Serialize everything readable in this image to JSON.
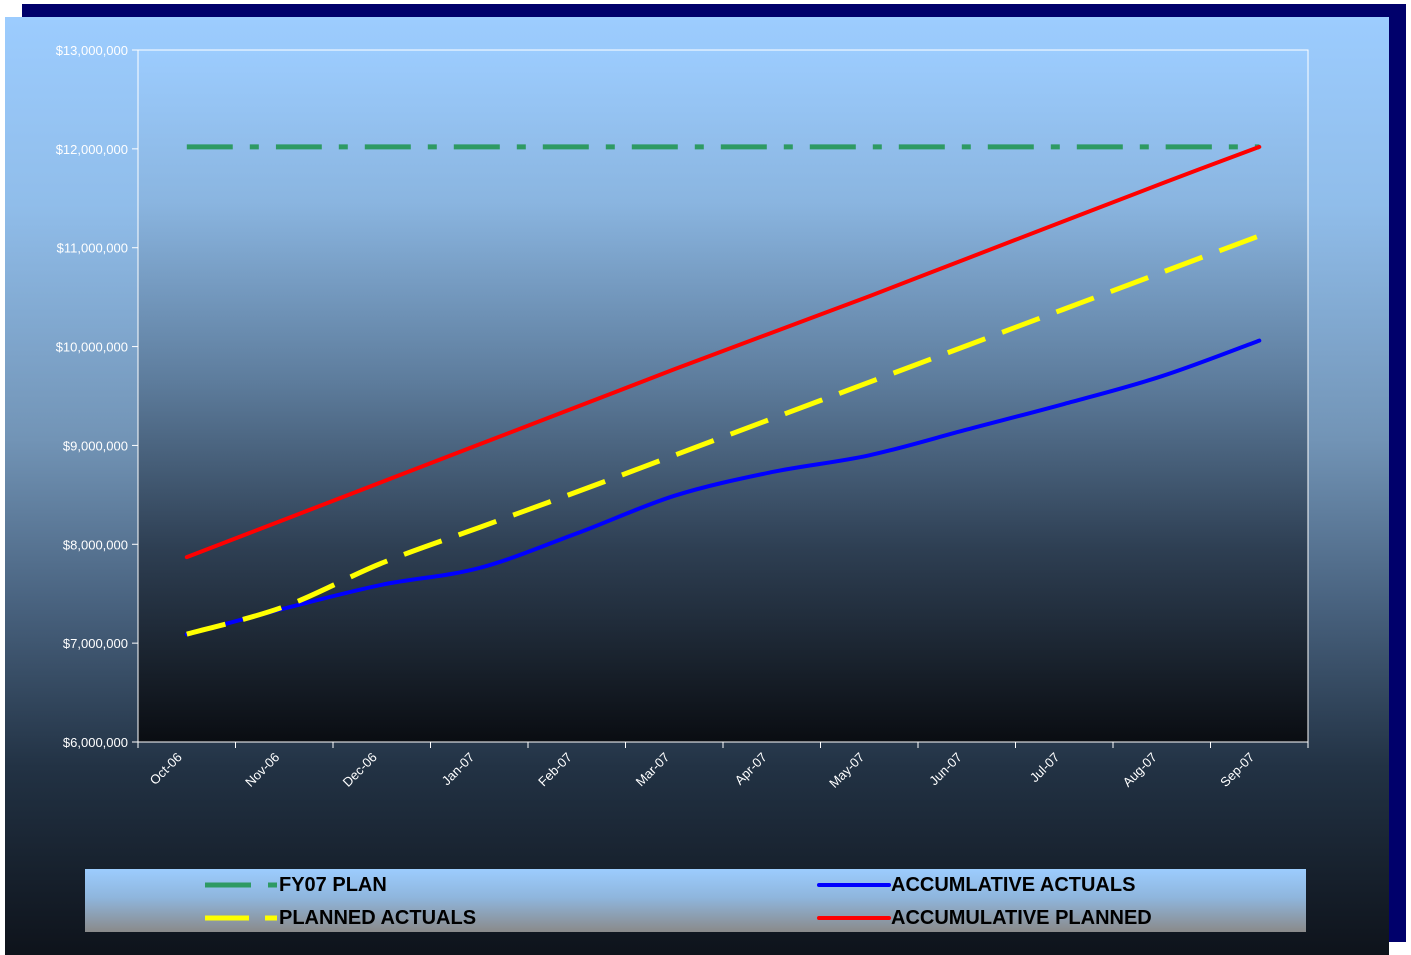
{
  "chart_data": {
    "type": "line",
    "title": "",
    "xlabel": "",
    "ylabel": "",
    "categories": [
      "Oct-06",
      "Nov-06",
      "Dec-06",
      "Jan-07",
      "Feb-07",
      "Mar-07",
      "Apr-07",
      "May-07",
      "Jun-07",
      "Jul-07",
      "Aug-07",
      "Sep-07"
    ],
    "ylim": [
      6000000,
      13000000
    ],
    "y_ticks": [
      6000000,
      7000000,
      8000000,
      9000000,
      10000000,
      11000000,
      12000000,
      13000000
    ],
    "y_tick_labels": [
      "$6,000,000",
      "$7,000,000",
      "$8,000,000",
      "$9,000,000",
      "$10,000,000",
      "$11,000,000",
      "$12,000,000",
      "$13,000,000"
    ],
    "grid": false,
    "legend_position": "bottom",
    "series": [
      {
        "name": "FY07 PLAN",
        "color": "#2e9a63",
        "style": "dash-dot",
        "values": [
          12020000,
          12020000,
          12020000,
          12020000,
          12020000,
          12020000,
          12020000,
          12020000,
          12020000,
          12020000,
          12020000,
          12020000
        ]
      },
      {
        "name": "PLANNED ACTUALS",
        "color": "#ffff00",
        "style": "dashed",
        "values": [
          7090000,
          7370000,
          7810000,
          8170000,
          8530000,
          8900000,
          9270000,
          9640000,
          10010000,
          10380000,
          10750000,
          11120000
        ]
      },
      {
        "name": "ACCUMLATIVE ACTUALS",
        "color": "#0000ff",
        "style": "solid",
        "values": [
          7090000,
          7350000,
          7590000,
          7760000,
          8110000,
          8490000,
          8730000,
          8900000,
          9160000,
          9420000,
          9700000,
          10060000
        ]
      },
      {
        "name": "ACCUMULATIVE PLANNED",
        "color": "#ff0000",
        "style": "solid",
        "values": [
          7870000,
          8250000,
          8630000,
          9010000,
          9390000,
          9770000,
          10140000,
          10510000,
          10890000,
          11270000,
          11650000,
          12020000
        ]
      }
    ]
  },
  "legend": {
    "fy07_plan": "FY07 PLAN",
    "accumlative_actuals": "ACCUMLATIVE ACTUALS",
    "planned_actuals": "PLANNED ACTUALS",
    "accumulative_planned": "ACCUMULATIVE PLANNED"
  }
}
